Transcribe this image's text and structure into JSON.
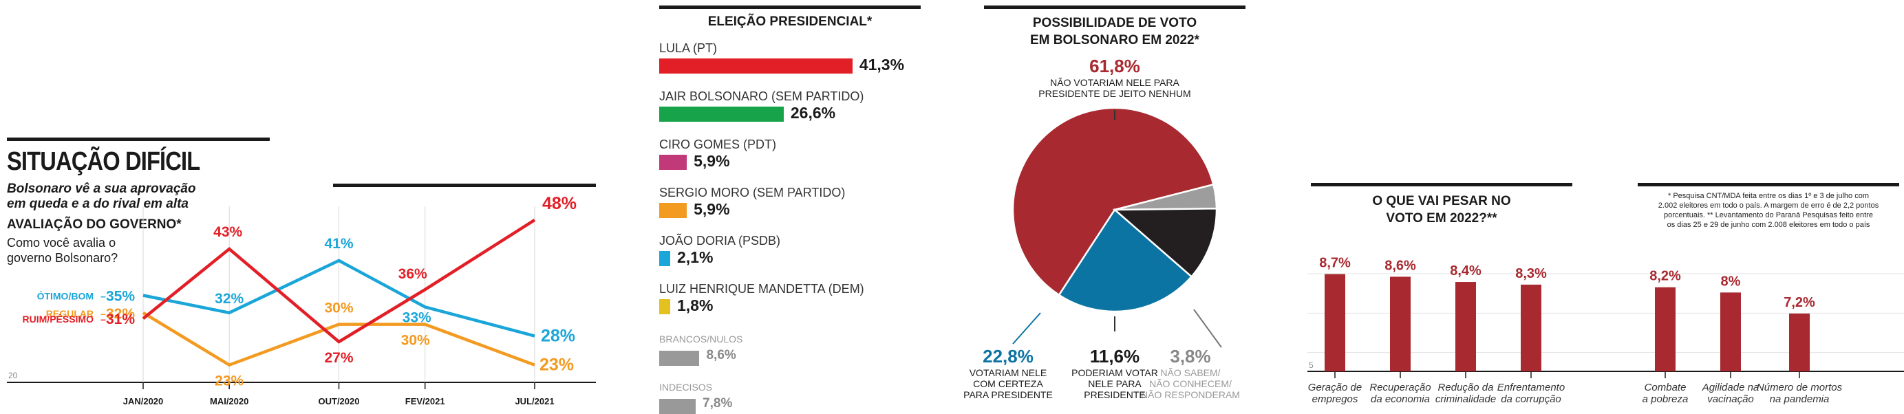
{
  "panel1": {
    "title": "SITUAÇÃO DIFÍCIL",
    "subtitle_line1": "Bolsonaro vê a sua aprovação",
    "subtitle_line2": "em queda e a do rival em alta",
    "section": "AVALIAÇÃO DO GOVERNO*",
    "question_line1": "Como você avalia o",
    "question_line2": "governo Bolsonaro?",
    "axis_min_label": "20"
  },
  "panel2": {
    "title": "ELEIÇÃO PRESIDENCIAL*"
  },
  "panel3": {
    "title_line1": "POSSIBILIDADE DE VOTO",
    "title_line2": "EM BOLSONARO EM 2022*"
  },
  "panel4": {
    "title_line1": "O QUE VAI PESAR NO",
    "title_line2": "VOTO EM 2022?**",
    "axis_min_label": "5",
    "footnote_1": "* Pesquisa CNT/MDA feita entre os dias 1º e 3 de julho com",
    "footnote_2": "2.002 eleitores em todo o país. A margem de erro é de 2,2 pontos",
    "footnote_3": "porcentuais. ** Levantamento do Paraná Pesquisas feito entre",
    "footnote_4": "os dias 25 e 29 de junho com 2.008 eleitores em todo o país"
  },
  "chart_data": [
    {
      "type": "line",
      "title": "AVALIAÇÃO DO GOVERNO*",
      "categories": [
        "JAN/2020",
        "MAI/2020",
        "OUT/2020",
        "FEV/2021",
        "JUL/2021"
      ],
      "x_positions": [
        2020.0,
        2020.33,
        2020.75,
        2021.08,
        2021.5
      ],
      "ylim": [
        20,
        50
      ],
      "series": [
        {
          "name": "ÓTIMO/BOM",
          "color": "#1aa6d8",
          "values": [
            35,
            32,
            41,
            33,
            28
          ],
          "labels": [
            "35%",
            "32%",
            "41%",
            "33%",
            "28%"
          ]
        },
        {
          "name": "REGULAR",
          "color": "#f39a21",
          "values": [
            32,
            23,
            30,
            30,
            23
          ],
          "labels": [
            "32%",
            "23%",
            "30%",
            "30%",
            "23%"
          ]
        },
        {
          "name": "RUIM/PÉSSIMO",
          "color": "#e21f26",
          "values": [
            31,
            43,
            27,
            36,
            48
          ],
          "labels": [
            "31%",
            "43%",
            "27%",
            "36%",
            "48%"
          ]
        }
      ]
    },
    {
      "type": "bar",
      "orientation": "horizontal",
      "title": "ELEIÇÃO PRESIDENCIAL*",
      "items": [
        {
          "label": "LULA (PT)",
          "value": 41.3,
          "text": "41,3%",
          "color": "#e21f26"
        },
        {
          "label": "JAIR BOLSONARO (SEM PARTIDO)",
          "value": 26.6,
          "text": "26,6%",
          "color": "#17a34a"
        },
        {
          "label": "CIRO GOMES (PDT)",
          "value": 5.9,
          "text": "5,9%",
          "color": "#c2397a"
        },
        {
          "label": "SERGIO MORO (SEM PARTIDO)",
          "value": 5.9,
          "text": "5,9%",
          "color": "#f39a21"
        },
        {
          "label": "JOÃO DORIA (PSDB)",
          "value": 2.1,
          "text": "2,1%",
          "color": "#1aa6d8"
        },
        {
          "label": "LUIZ HENRIQUE MANDETTA (DEM)",
          "value": 1.8,
          "text": "1,8%",
          "color": "#e3c11f"
        },
        {
          "label": "BRANCOS/NULOS",
          "value": 8.6,
          "text": "8,6%",
          "color": "#999999",
          "muted": true
        },
        {
          "label": "INDECISOS",
          "value": 7.8,
          "text": "7,8%",
          "color": "#999999",
          "muted": true
        }
      ]
    },
    {
      "type": "pie",
      "title": "POSSIBILIDADE DE VOTO EM BOLSONARO EM 2022*",
      "slices": [
        {
          "value": 61.8,
          "text": "61,8%",
          "color": "#a8292f",
          "label_lines": [
            "NÃO VOTARIAM NELE PARA",
            "PRESIDENTE DE JEITO NENHUM"
          ]
        },
        {
          "value": 3.8,
          "text": "3,8%",
          "color": "#9d9d9d",
          "label_lines": [
            "NÃO SABEM/",
            "NÃO CONHECEM/",
            "NÃO RESPONDERAM"
          ]
        },
        {
          "value": 11.6,
          "text": "11,6%",
          "color": "#231f20",
          "label_lines": [
            "PODERIAM VOTAR",
            "NELE PARA",
            "PRESIDENTE"
          ]
        },
        {
          "value": 22.8,
          "text": "22,8%",
          "color": "#0b74a3",
          "label_lines": [
            "VOTARIAM NELE",
            "COM CERTEZA",
            "PARA PRESIDENTE"
          ]
        }
      ]
    },
    {
      "type": "bar",
      "title": "O QUE VAI PESAR NO VOTO EM 2022?**",
      "ylim": [
        5,
        9.5
      ],
      "color": "#a8292f",
      "items": [
        {
          "label_lines": [
            "Geração de",
            "empregos"
          ],
          "value": 8.7,
          "text": "8,7%"
        },
        {
          "label_lines": [
            "Recuperação",
            "da economia"
          ],
          "value": 8.6,
          "text": "8,6%"
        },
        {
          "label_lines": [
            "Redução da",
            "criminalidade"
          ],
          "value": 8.4,
          "text": "8,4%"
        },
        {
          "label_lines": [
            "Enfrentamento",
            "da corrupção"
          ],
          "value": 8.3,
          "text": "8,3%"
        },
        {
          "label_lines": [
            "Combate",
            "a pobreza"
          ],
          "value": 8.2,
          "text": "8,2%"
        },
        {
          "label_lines": [
            "Agilidade na",
            "vacinação"
          ],
          "value": 8.0,
          "text": "8%"
        },
        {
          "label_lines": [
            "Número de mortos",
            "na pandemia"
          ],
          "value": 7.2,
          "text": "7,2%"
        }
      ]
    }
  ]
}
